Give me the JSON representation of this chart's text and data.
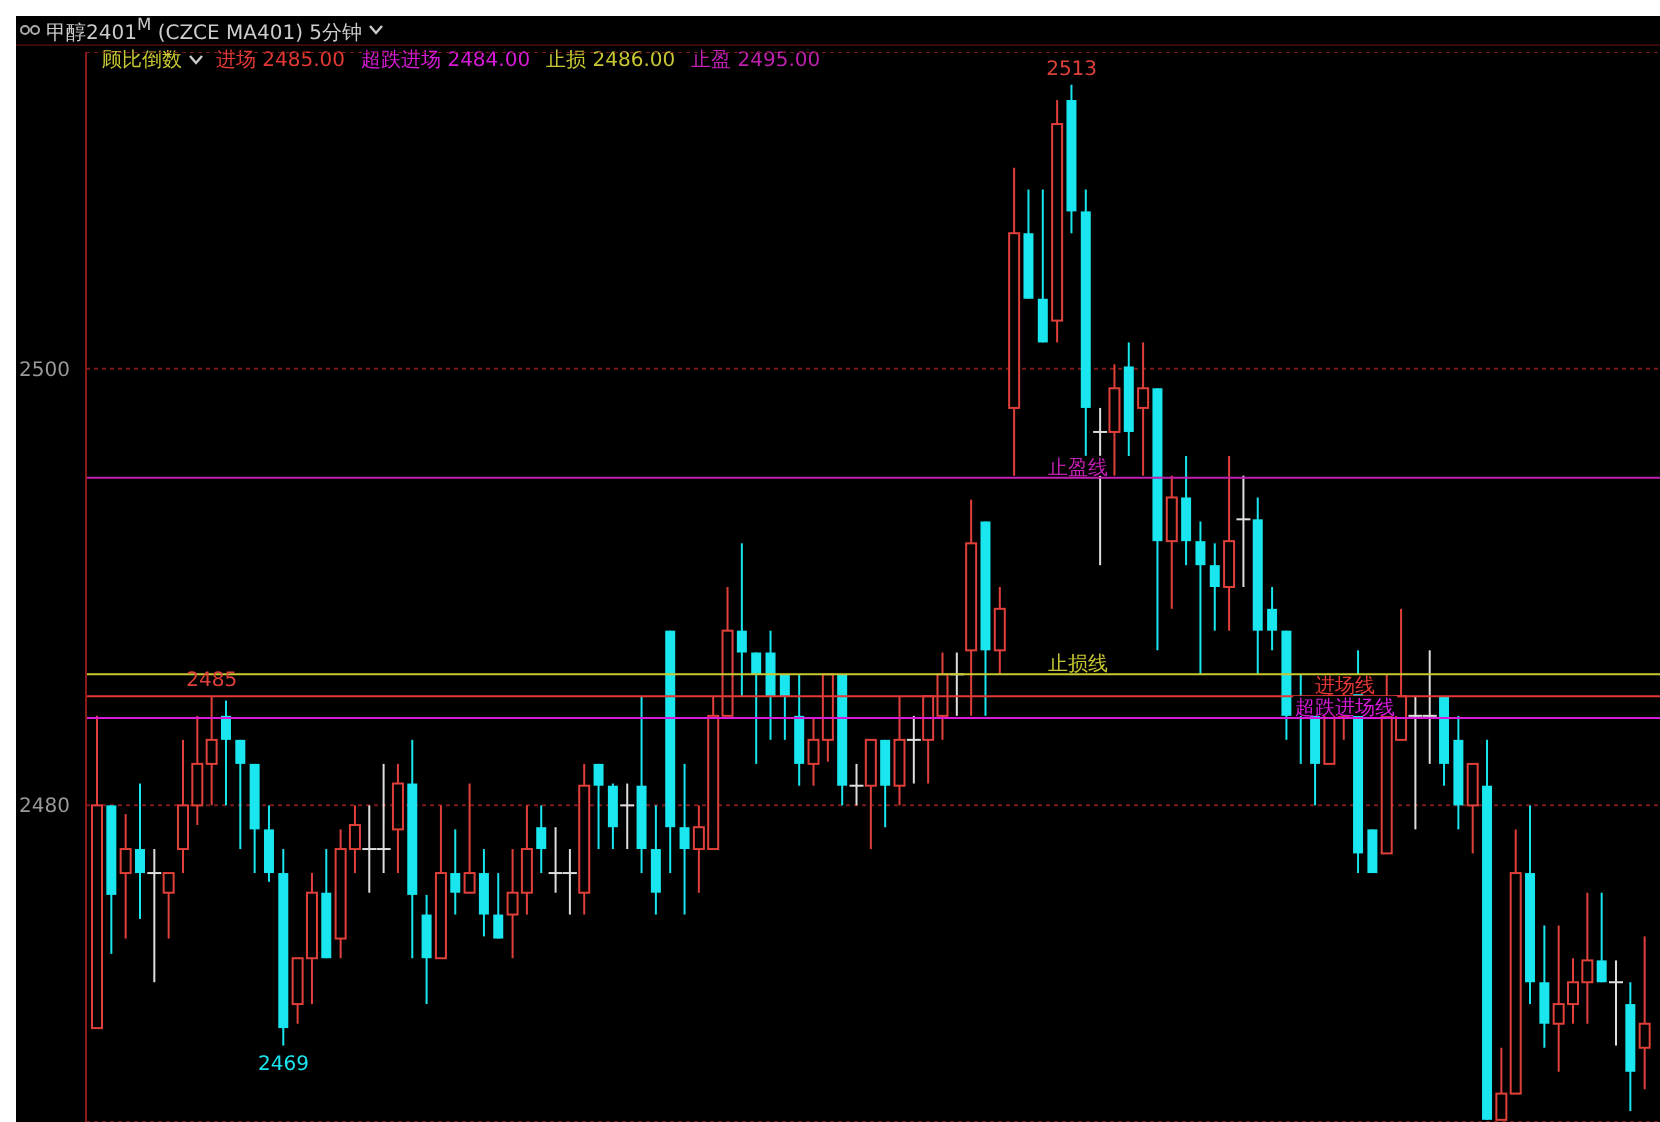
{
  "chart_data": {
    "type": "candlestick",
    "title": "甲醇2401$^{M}$ (CZCE MA401)  5分钟",
    "subtitle": "顾比倒数",
    "categories": [
      null,
      null,
      null,
      null,
      null,
      null,
      null,
      null,
      null,
      null,
      null,
      null,
      null,
      null,
      null,
      null,
      null,
      null,
      null,
      null,
      null,
      null,
      null,
      null,
      null,
      null,
      null,
      null,
      null,
      null,
      null,
      null,
      null,
      null,
      null,
      null,
      null,
      null,
      null,
      null,
      null,
      null,
      null,
      null,
      null,
      null,
      null,
      null,
      null,
      null,
      null,
      null,
      null,
      null,
      null,
      null,
      null,
      null,
      null,
      null,
      null,
      null,
      null,
      null,
      null,
      null,
      null,
      null,
      null,
      null,
      null,
      null,
      null,
      null,
      null,
      null,
      null,
      null,
      null,
      null,
      null,
      null,
      null,
      null,
      null,
      null,
      null,
      null,
      null,
      null,
      null,
      null,
      null,
      null,
      null,
      null,
      null,
      null,
      null,
      null,
      null,
      null,
      null,
      null,
      null,
      null,
      null,
      null,
      null
    ],
    "ohlc": [
      [
        2469.8,
        2484.1,
        2469.8,
        2480
      ],
      [
        2480,
        2480,
        2473.2,
        2475.9
      ],
      [
        2476.9,
        2479.6,
        2473.9,
        2478
      ],
      [
        2478,
        2481,
        2474.8,
        2476.9
      ],
      [
        2476.9,
        2478,
        2471.9,
        2476.9
      ],
      [
        2476,
        2476.9,
        2473.9,
        2476.9
      ],
      [
        2478,
        2483,
        2476.9,
        2480
      ],
      [
        2480,
        2484.1,
        2479.1,
        2481.9
      ],
      [
        2481.9,
        2485,
        2480,
        2483
      ],
      [
        2484.1,
        2484.8,
        2480,
        2483
      ],
      [
        2483,
        2483,
        2478,
        2481.9
      ],
      [
        2481.9,
        2481.9,
        2476.9,
        2478.9
      ],
      [
        2478.9,
        2480,
        2476.5,
        2476.9
      ],
      [
        2476.9,
        2478,
        2469,
        2469.8
      ],
      [
        2470.9,
        2473,
        2470,
        2473
      ],
      [
        2473,
        2476.9,
        2470.9,
        2476
      ],
      [
        2476,
        2478,
        2473,
        2473
      ],
      [
        2473.9,
        2478.9,
        2473,
        2478
      ],
      [
        2478,
        2480,
        2476.9,
        2479.1
      ],
      [
        2478,
        2480,
        2476,
        2478
      ],
      [
        2478,
        2481.9,
        2476.9,
        2478
      ],
      [
        2478.9,
        2481.9,
        2476.9,
        2481
      ],
      [
        2481,
        2483,
        2473,
        2475.9
      ],
      [
        2475,
        2475.9,
        2470.9,
        2473
      ],
      [
        2473,
        2480,
        2473,
        2476.9
      ],
      [
        2476.9,
        2478.9,
        2475,
        2476
      ],
      [
        2476,
        2481,
        2476,
        2476.9
      ],
      [
        2476.9,
        2478,
        2474,
        2475
      ],
      [
        2475,
        2476.9,
        2473.9,
        2473.9
      ],
      [
        2475,
        2478,
        2473,
        2476
      ],
      [
        2476,
        2480,
        2475,
        2478
      ],
      [
        2479,
        2480,
        2476.9,
        2478
      ],
      [
        2476.9,
        2479,
        2476,
        2476.9
      ],
      [
        2476.9,
        2478,
        2475,
        2476.9
      ],
      [
        2476,
        2481.9,
        2475,
        2480.9
      ],
      [
        2481.9,
        2481.9,
        2478,
        2480.9
      ],
      [
        2480.9,
        2481,
        2478,
        2479
      ],
      [
        2480,
        2481,
        2478,
        2480
      ],
      [
        2480.9,
        2485,
        2476.9,
        2478
      ],
      [
        2478,
        2480,
        2475,
        2476
      ],
      [
        2488,
        2488,
        2476.9,
        2479
      ],
      [
        2479,
        2481.9,
        2475,
        2478
      ],
      [
        2478,
        2480,
        2476,
        2479
      ],
      [
        2478,
        2485,
        2478,
        2484.1
      ],
      [
        2484.1,
        2490,
        2484.1,
        2488
      ],
      [
        2488,
        2492,
        2485,
        2487
      ],
      [
        2487,
        2487,
        2481.9,
        2486
      ],
      [
        2487,
        2488,
        2483,
        2485
      ],
      [
        2486,
        2486,
        2483,
        2485
      ],
      [
        2484.1,
        2486,
        2480.9,
        2481.9
      ],
      [
        2481.9,
        2484,
        2480.9,
        2483
      ],
      [
        2483,
        2486,
        2482,
        2486
      ],
      [
        2486,
        2486,
        2480,
        2480.9
      ],
      [
        2480.9,
        2481.9,
        2480,
        2480.9
      ],
      [
        2480.9,
        2483,
        2478,
        2483
      ],
      [
        2483,
        2483,
        2479,
        2480.9
      ],
      [
        2480.9,
        2485,
        2480,
        2483
      ],
      [
        2483,
        2484.1,
        2481,
        2483
      ],
      [
        2483,
        2485,
        2481,
        2485
      ],
      [
        2484.1,
        2487,
        2483,
        2486
      ],
      [
        2486,
        2487,
        2484.1,
        2486
      ],
      [
        2487.1,
        2494,
        2484.1,
        2492
      ],
      [
        2493,
        2493,
        2484.1,
        2487.1
      ],
      [
        2487.1,
        2490,
        2486,
        2489
      ],
      [
        2498.2,
        2509.2,
        2495.1,
        2506.2
      ],
      [
        2506.2,
        2508.2,
        2503.2,
        2503.2
      ],
      [
        2503.2,
        2508.2,
        2501.2,
        2501.2
      ],
      [
        2502.2,
        2512.3,
        2501.2,
        2511.2
      ],
      [
        2512.3,
        2513,
        2506.2,
        2507.2
      ],
      [
        2507.2,
        2508.2,
        2496,
        2498.2
      ],
      [
        2497.1,
        2498.2,
        2491,
        2497.1
      ],
      [
        2497.1,
        2500.2,
        2495.1,
        2499.1
      ],
      [
        2500.1,
        2501.2,
        2496,
        2497.1
      ],
      [
        2498.2,
        2501.2,
        2495.1,
        2499.1
      ],
      [
        2499.1,
        2499.1,
        2487.1,
        2492.1
      ],
      [
        2492.1,
        2495.1,
        2489,
        2494.1
      ],
      [
        2494.1,
        2496,
        2491,
        2492.1
      ],
      [
        2492.1,
        2493,
        2486,
        2491
      ],
      [
        2491,
        2492,
        2488,
        2490
      ],
      [
        2490,
        2496,
        2488,
        2492.1
      ],
      [
        2493.1,
        2495.1,
        2490,
        2493.1
      ],
      [
        2493.1,
        2494.1,
        2486,
        2488
      ],
      [
        2489,
        2490,
        2487.1,
        2488
      ],
      [
        2488,
        2488,
        2483,
        2484.1
      ],
      [
        2485,
        2486,
        2481.9,
        2484.1
      ],
      [
        2484.1,
        2484.1,
        2480,
        2481.9
      ],
      [
        2481.9,
        2486,
        2481.9,
        2485
      ],
      [
        2484.1,
        2486,
        2483,
        2485
      ],
      [
        2486,
        2487.1,
        2476.9,
        2477.8
      ],
      [
        2478.9,
        2478.9,
        2476.9,
        2476.9
      ],
      [
        2477.8,
        2486,
        2477.8,
        2484.1
      ],
      [
        2483,
        2489,
        2483,
        2485
      ],
      [
        2484.1,
        2485,
        2478.9,
        2484.1
      ],
      [
        2484.1,
        2487.1,
        2481.9,
        2484.1
      ],
      [
        2485,
        2485,
        2480.9,
        2481.9
      ],
      [
        2483,
        2484.1,
        2478.9,
        2480
      ],
      [
        2480,
        2481.9,
        2477.8,
        2481.9
      ],
      [
        2480.9,
        2483,
        2465.6,
        2465.6
      ],
      [
        2465.6,
        2468.9,
        2465.6,
        2466.8
      ],
      [
        2466.8,
        2478.9,
        2466.8,
        2476.9
      ],
      [
        2476.9,
        2480,
        2470.9,
        2471.9
      ],
      [
        2471.9,
        2474.5,
        2468.9,
        2470
      ],
      [
        2470,
        2474.5,
        2467.8,
        2470.9
      ],
      [
        2470.9,
        2473,
        2470,
        2471.9
      ],
      [
        2471.9,
        2476,
        2470,
        2472.9
      ],
      [
        2472.9,
        2476,
        2471.9,
        2471.9
      ],
      [
        2471.9,
        2472.9,
        2469,
        2471.9
      ],
      [
        2470.9,
        2471.9,
        2466,
        2467.8
      ],
      [
        2468.9,
        2474,
        2467,
        2470
      ]
    ],
    "ylim": [
      2465.5,
      2514.5
    ],
    "yticks": [
      2480,
      2500
    ],
    "grid": "y",
    "ref_lines": [
      {
        "axis": "y",
        "value": 2485,
        "label": "进场线",
        "color": "#e53935"
      },
      {
        "axis": "y",
        "value": 2484,
        "label": "超跌进场线",
        "color": "#d81bd8"
      },
      {
        "axis": "y",
        "value": 2486,
        "label": "止损线",
        "color": "#c8c832"
      },
      {
        "axis": "y",
        "value": 2495,
        "label": "止盈线",
        "color": "#c020b0"
      }
    ],
    "annotations": [
      "进场 2485.00",
      "超跌进场 2484.00",
      "止损 2486.00",
      "止盈 2495.00",
      {
        "text": "2513",
        "y": 2513
      },
      {
        "text": "2485",
        "y": 2485
      },
      {
        "text": "2469",
        "y": 2469
      }
    ]
  }
}
